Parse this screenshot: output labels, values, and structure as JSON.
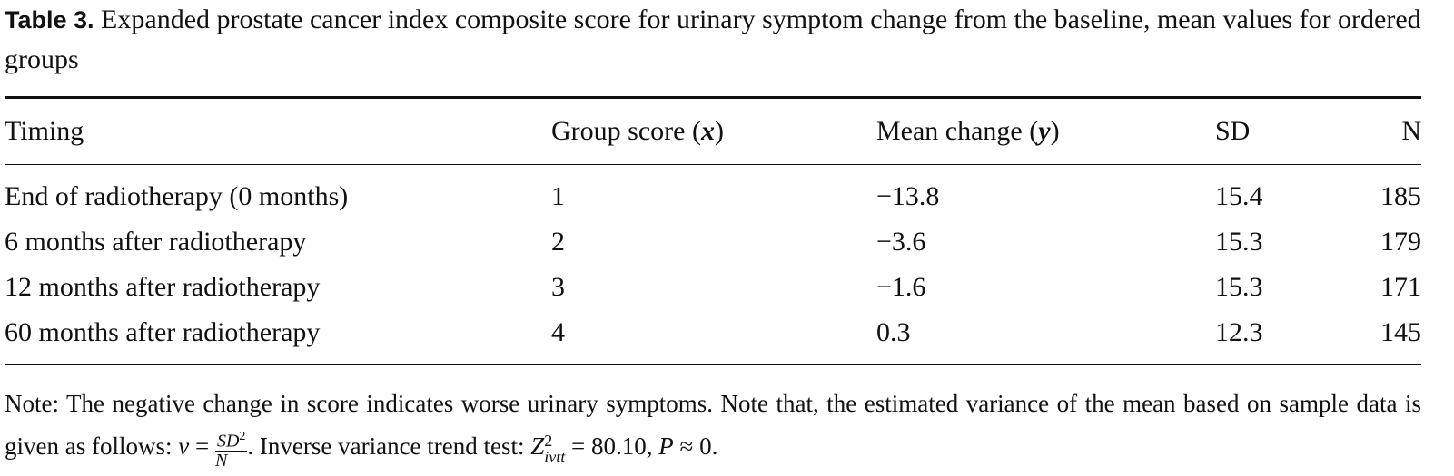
{
  "caption": {
    "label": "Table 3.",
    "text": "Expanded prostate cancer index composite score for urinary symptom change from the baseline, mean values for ordered groups"
  },
  "table": {
    "header": [
      [
        "Timing"
      ],
      [
        "Group score (",
        "x",
        ")"
      ],
      [
        "Mean change (",
        "y",
        ")"
      ],
      [
        "SD"
      ],
      [
        "N"
      ]
    ],
    "rows": [
      [
        "End of radiotherapy (0 months)",
        "1",
        "−13.8",
        "15.4",
        "185"
      ],
      [
        "6 months after radiotherapy",
        "2",
        "−3.6",
        "15.3",
        "179"
      ],
      [
        "12 months after radiotherapy",
        "3",
        "−1.6",
        "15.3",
        "171"
      ],
      [
        "60 months after radiotherapy",
        "4",
        "0.3",
        "12.3",
        "145"
      ]
    ]
  },
  "note": {
    "text": "Note: The negative change in score indicates worse urinary symptoms. Note that, the estimated variance of the mean based on sample data is given as follows: ",
    "v": "v",
    "eq1": " = ",
    "num": "SD",
    "num_sup": "2",
    "den": "N",
    "text2": ". Inverse variance trend test: ",
    "z": "Z",
    "z_sup": "2",
    "z_sub": "ivtt",
    "eq2": " = 80.10, ",
    "p": "P",
    "tail": " ≈ 0."
  }
}
